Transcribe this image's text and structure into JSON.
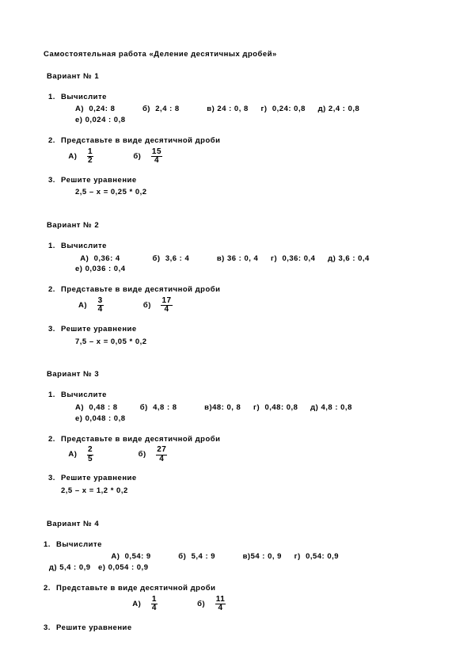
{
  "title": "Самостоятельная работа «Деление десятичных дробей»",
  "variants": [
    {
      "title": "Вариант № 1",
      "task1_label": "Вычислите",
      "task1_items": [
        {
          "lbl": "А)",
          "v": "0,24: 8"
        },
        {
          "lbl": "б)",
          "v": "2,4 : 8"
        },
        {
          "lbl": "в)",
          "v": "24 : 0, 8"
        },
        {
          "lbl": "г)",
          "v": "0,24: 0,8"
        },
        {
          "lbl": "д)",
          "v": "2,4 : 0,8"
        },
        {
          "lbl": "е)",
          "v": "0,024 : 0,8"
        }
      ],
      "task2_label": "Представьте в виде десятичной дроби",
      "task2_items": [
        {
          "lbl": "А)",
          "num": "1",
          "den": "2"
        },
        {
          "lbl": "б)",
          "num": "15",
          "den": "4"
        }
      ],
      "task3_label": "Решите уравнение",
      "task3_eq": "2,5 – x = 0,25 * 0,2"
    },
    {
      "title": "Вариант № 2",
      "task1_label": "Вычислите",
      "task1_items": [
        {
          "lbl": "А)",
          "v": "0,36: 4"
        },
        {
          "lbl": "б)",
          "v": "3,6 : 4"
        },
        {
          "lbl": "в)",
          "v": "36 : 0, 4"
        },
        {
          "lbl": "г)",
          "v": "0,36: 0,4"
        },
        {
          "lbl": "д)",
          "v": "3,6 : 0,4"
        },
        {
          "lbl": "е)",
          "v": "0,036 : 0,4"
        }
      ],
      "task2_label": "Представьте в виде десятичной дроби",
      "task2_items": [
        {
          "lbl": "А)",
          "num": "3",
          "den": "4"
        },
        {
          "lbl": "б)",
          "num": "17",
          "den": "4"
        }
      ],
      "task3_label": "Решите уравнение",
      "task3_eq": "7,5 – x = 0,05 * 0,2"
    },
    {
      "title": "Вариант № 3",
      "task1_label": "Вычислите",
      "task1_items": [
        {
          "lbl": "А)",
          "v": "0,48 : 8"
        },
        {
          "lbl": "б)",
          "v": "4,8 : 8"
        },
        {
          "lbl": "в)",
          "v": "48: 0, 8"
        },
        {
          "lbl": "г)",
          "v": "0,48: 0,8"
        },
        {
          "lbl": "д)",
          "v": "4,8 : 0,8"
        },
        {
          "lbl": "е)",
          "v": "0,048 : 0,8"
        }
      ],
      "task2_label": "Представьте в виде десятичной дроби",
      "task2_items": [
        {
          "lbl": "А)",
          "num": "2",
          "den": "5"
        },
        {
          "lbl": "б)",
          "num": "27",
          "den": "4"
        }
      ],
      "task3_label": "Решите уравнение",
      "task3_eq": "2,5 – x = 1,2 * 0,2"
    },
    {
      "title": "Вариант № 4",
      "task1_label": "Вычислите",
      "task1_items": [
        {
          "lbl": "А)",
          "v": "0,54: 9"
        },
        {
          "lbl": "б)",
          "v": "5,4 : 9"
        },
        {
          "lbl": "в)",
          "v": "54 : 0, 9"
        },
        {
          "lbl": "г)",
          "v": "0,54: 0,9"
        },
        {
          "lbl": "д)",
          "v": "5,4 : 0,9"
        },
        {
          "lbl": "е)",
          "v": "0,054 : 0,9"
        }
      ],
      "task2_label": "Представьте в виде десятичной дроби",
      "task2_items": [
        {
          "lbl": "А)",
          "num": "1",
          "den": "4"
        },
        {
          "lbl": "б)",
          "num": "11",
          "den": "4"
        }
      ],
      "task3_label": "Решите уравнение"
    }
  ]
}
